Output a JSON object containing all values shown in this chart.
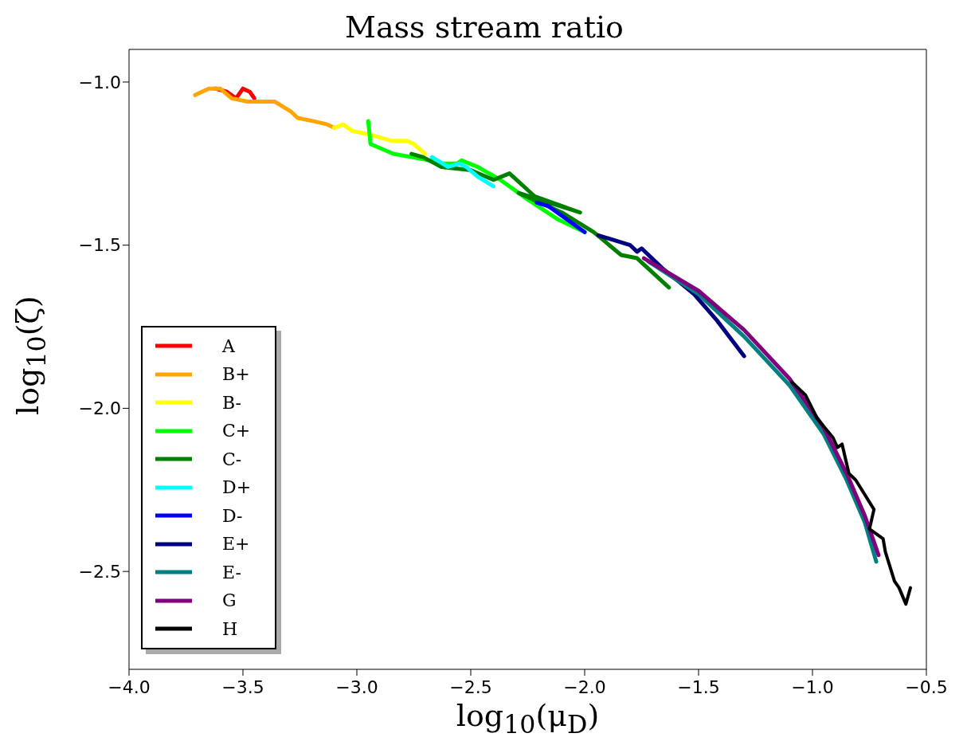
{
  "chart_data": {
    "type": "line",
    "title": "Mass stream ratio",
    "xlabel": "log$_{10}$(μ$_{D}$)",
    "ylabel": "log$_{10}$(ζ)",
    "xlim": [
      -4.0,
      -0.5
    ],
    "ylim": [
      -2.8,
      -0.9
    ],
    "xticks": [
      {
        "value": -4.0,
        "label": "−4.0"
      },
      {
        "value": -3.5,
        "label": "−3.5"
      },
      {
        "value": -3.0,
        "label": "−3.0"
      },
      {
        "value": -2.5,
        "label": "−2.5"
      },
      {
        "value": -2.0,
        "label": "−2.0"
      },
      {
        "value": -1.5,
        "label": "−1.5"
      },
      {
        "value": -1.0,
        "label": "−1.0"
      },
      {
        "value": -0.5,
        "label": "−0.5"
      }
    ],
    "yticks": [
      {
        "value": -1.0,
        "label": "−1.0"
      },
      {
        "value": -1.5,
        "label": "−1.5"
      },
      {
        "value": -2.0,
        "label": "−2.0"
      },
      {
        "value": -2.5,
        "label": "−2.5"
      }
    ],
    "grid": false,
    "legend": "bottom left",
    "marker": "none",
    "line_style": "solid",
    "series": [
      {
        "name": "A",
        "color": "#ff0000",
        "x": [
          -3.62,
          -3.57,
          -3.53,
          -3.5,
          -3.47,
          -3.45
        ],
        "values": [
          -1.02,
          -1.03,
          -1.05,
          -1.02,
          -1.03,
          -1.05
        ]
      },
      {
        "name": "B+",
        "color": "#ffa500",
        "x": [
          -3.71,
          -3.65,
          -3.6,
          -3.55,
          -3.48,
          -3.36,
          -3.29,
          -3.26,
          -3.19,
          -3.13,
          -3.1
        ],
        "values": [
          -1.04,
          -1.02,
          -1.02,
          -1.05,
          -1.06,
          -1.06,
          -1.09,
          -1.11,
          -1.12,
          -1.13,
          -1.14
        ]
      },
      {
        "name": "B-",
        "color": "#ffff00",
        "x": [
          -3.1,
          -3.06,
          -3.02,
          -2.95,
          -2.85,
          -2.78,
          -2.75,
          -2.7
        ],
        "values": [
          -1.14,
          -1.13,
          -1.15,
          -1.16,
          -1.18,
          -1.18,
          -1.19,
          -1.22
        ]
      },
      {
        "name": "C+",
        "color": "#00ff00",
        "x": [
          -2.95,
          -2.94,
          -2.84,
          -2.68,
          -2.63,
          -2.56,
          -2.54,
          -2.47,
          -2.37,
          -2.25,
          -2.12,
          -2.0
        ],
        "values": [
          -1.12,
          -1.19,
          -1.22,
          -1.24,
          -1.25,
          -1.25,
          -1.24,
          -1.26,
          -1.3,
          -1.36,
          -1.42,
          -1.46
        ]
      },
      {
        "name": "C-",
        "color": "#008000",
        "x": [
          -2.76,
          -2.71,
          -2.63,
          -2.5,
          -2.4,
          -2.33,
          -2.22,
          -2.02,
          -2.29,
          -2.1,
          -1.96,
          -1.84,
          -1.77,
          -1.63
        ],
        "values": [
          -1.22,
          -1.23,
          -1.26,
          -1.27,
          -1.3,
          -1.28,
          -1.35,
          -1.4,
          -1.34,
          -1.4,
          -1.46,
          -1.53,
          -1.54,
          -1.63
        ]
      },
      {
        "name": "D+",
        "color": "#00ffff",
        "x": [
          -2.67,
          -2.6,
          -2.55,
          -2.52,
          -2.47,
          -2.4
        ],
        "values": [
          -1.23,
          -1.26,
          -1.25,
          -1.26,
          -1.29,
          -1.32
        ]
      },
      {
        "name": "D-",
        "color": "#0000ff",
        "x": [
          -2.21,
          -2.16,
          -2.12,
          -2.06,
          -2.0
        ],
        "values": [
          -1.37,
          -1.38,
          -1.4,
          -1.43,
          -1.46
        ]
      },
      {
        "name": "E+",
        "color": "#000080",
        "x": [
          -1.94,
          -1.8,
          -1.77,
          -1.75,
          -1.66,
          -1.52,
          -1.42,
          -1.3
        ],
        "values": [
          -1.47,
          -1.5,
          -1.52,
          -1.51,
          -1.57,
          -1.65,
          -1.73,
          -1.84
        ]
      },
      {
        "name": "E-",
        "color": "#008080",
        "x": [
          -1.72,
          -1.5,
          -1.3,
          -1.1,
          -0.95,
          -0.85,
          -0.77,
          -0.72
        ],
        "values": [
          -1.55,
          -1.65,
          -1.78,
          -1.93,
          -2.08,
          -2.22,
          -2.35,
          -2.47
        ]
      },
      {
        "name": "G",
        "color": "#800080",
        "x": [
          -1.74,
          -1.5,
          -1.3,
          -1.1,
          -0.95,
          -0.85,
          -0.77,
          -0.71
        ],
        "values": [
          -1.54,
          -1.64,
          -1.76,
          -1.91,
          -2.06,
          -2.2,
          -2.33,
          -2.45
        ]
      },
      {
        "name": "H",
        "color": "#000000",
        "x": [
          -1.09,
          -1.03,
          -0.98,
          -0.91,
          -0.89,
          -0.87,
          -0.84,
          -0.81,
          -0.73,
          -0.75,
          -0.69,
          -0.68,
          -0.64,
          -0.62,
          -0.59,
          -0.57
        ],
        "values": [
          -1.92,
          -1.96,
          -2.03,
          -2.09,
          -2.12,
          -2.11,
          -2.2,
          -2.22,
          -2.31,
          -2.37,
          -2.4,
          -2.44,
          -2.53,
          -2.55,
          -2.6,
          -2.55
        ]
      }
    ]
  }
}
